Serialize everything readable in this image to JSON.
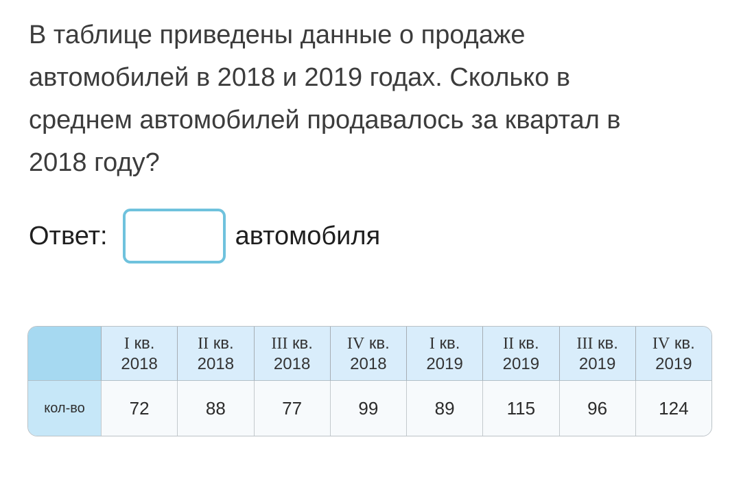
{
  "question": {
    "lines": [
      "В таблице приведены данные о продаже",
      "автомобилей в 2018 и 2019 годах. Сколько в",
      "среднем автомобилей продавалось за квартал в",
      "2018 году?"
    ]
  },
  "answer": {
    "label": "Ответ:",
    "input_value": "",
    "unit": "автомобиля"
  },
  "table": {
    "row_label": "кол-во",
    "quarter_word": "кв.",
    "columns": [
      {
        "quarter": "I",
        "year": "2018",
        "value": "72"
      },
      {
        "quarter": "II",
        "year": "2018",
        "value": "88"
      },
      {
        "quarter": "III",
        "year": "2018",
        "value": "77"
      },
      {
        "quarter": "IV",
        "year": "2018",
        "value": "99"
      },
      {
        "quarter": "I",
        "year": "2019",
        "value": "89"
      },
      {
        "quarter": "II",
        "year": "2019",
        "value": "115"
      },
      {
        "quarter": "III",
        "year": "2019",
        "value": "96"
      },
      {
        "quarter": "IV",
        "year": "2019",
        "value": "124"
      }
    ]
  },
  "colors": {
    "input_border": "#6fc2dd",
    "table_corner_bg": "#a6d9f1",
    "table_header_bg": "#d9edfb",
    "table_rowlabel_bg": "#c6e7f8",
    "table_data_bg": "#f7fafc",
    "question_text": "#3c3c3c"
  }
}
